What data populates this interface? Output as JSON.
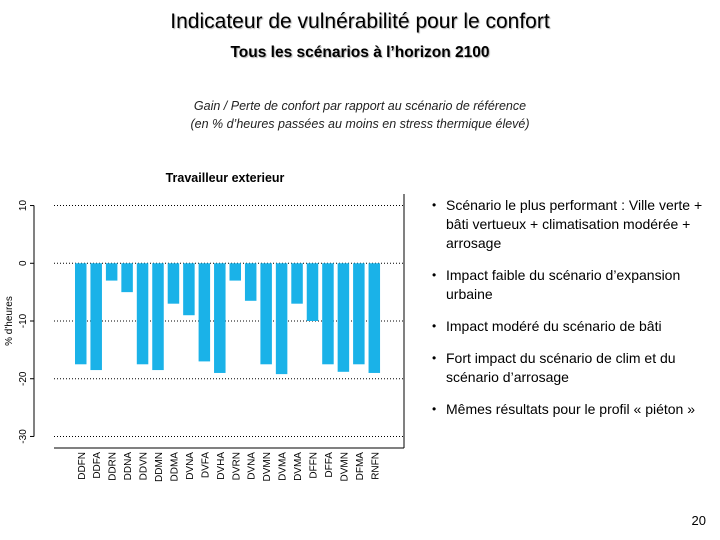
{
  "slide": {
    "title": "Indicateur de vulnérabilité pour le confort",
    "subtitle": "Tous les scénarios à l’horizon 2100",
    "caption_line1": "Gain / Perte de confort par rapport au scénario de référence",
    "caption_line2": "(en % d’heures passées au moins en stress thermique élevé)",
    "page_number": "20"
  },
  "bullets": [
    "Scénario le plus performant : Ville verte + bâti vertueux + climatisation modérée + arrosage",
    "Impact faible du scénario d’expansion urbaine",
    "Impact modéré du scénario de bâti",
    "Fort impact du scénario de clim et du scénario d’arrosage",
    "Mêmes résultats pour le profil « piéton »"
  ],
  "colors": {
    "bar": "#1ab2e8",
    "axis": "#000000",
    "grid": "#000000"
  },
  "chart_data": {
    "type": "bar",
    "title": "Travailleur exterieur",
    "ylabel": "% d'heures",
    "xlabel": "",
    "ylim": [
      -32,
      12
    ],
    "yticks": [
      10,
      0,
      -10,
      -20,
      -30
    ],
    "ytick_labels": [
      "10",
      "0",
      "-10",
      "-20",
      "-30"
    ],
    "gridlines": [
      10,
      0,
      -10,
      -20,
      -30
    ],
    "categories": [
      "DDFN",
      "DDFA",
      "DDRN",
      "DDNA",
      "DDVN",
      "DDMN",
      "DDMA",
      "DVNA",
      "DVFA",
      "DVHA",
      "DVRN",
      "DVNA",
      "DVMN",
      "DVMA",
      "DVMA",
      "DFFN",
      "DFFA",
      "DVMN",
      "DFMA",
      "RNFN"
    ],
    "values": [
      -17.5,
      -18.5,
      -3.0,
      -5.0,
      -17.5,
      -18.5,
      -7.0,
      -9.0,
      -17.0,
      -19.0,
      -3.0,
      -6.5,
      -17.5,
      -19.2,
      -7.0,
      -10.0,
      -17.5,
      -18.8,
      -17.5,
      -19.0
    ]
  }
}
